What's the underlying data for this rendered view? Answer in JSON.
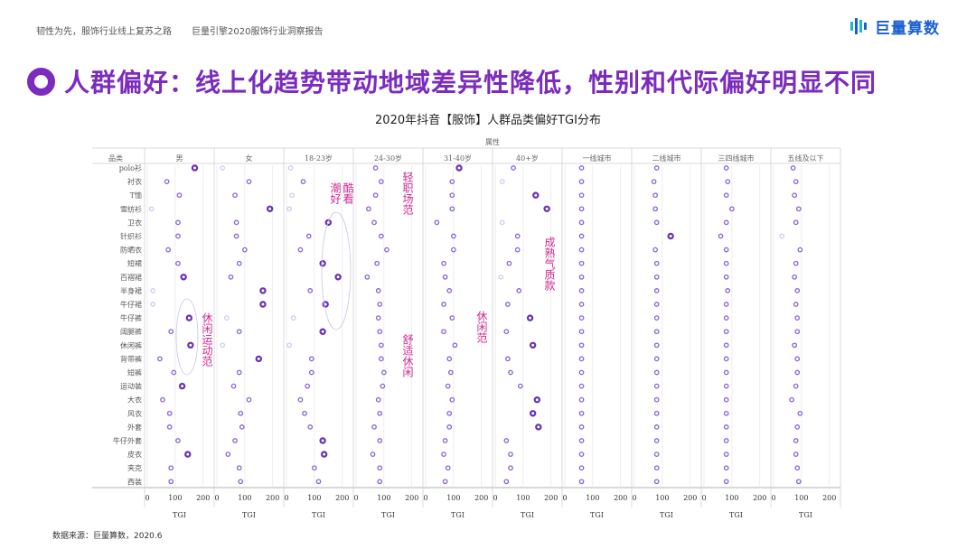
{
  "header": {
    "left": "韧性为先，服饰行业线上复苏之路",
    "right": "巨量引擎2020服饰行业洞察报告",
    "logo_text": "巨量算数"
  },
  "slide": {
    "heading": "人群偏好：线上化趋势带动地域差异性降低，性别和代际偏好明显不同"
  },
  "source": "数据来源：巨量算数，2020.6",
  "annotations": [
    {
      "text": "潮好",
      "name": "annotation-chaohao"
    },
    {
      "text": "酷看",
      "name": "annotation-kukan"
    },
    {
      "text": "轻职场范",
      "name": "annotation-light-workplace"
    },
    {
      "text": "成熟气质款",
      "name": "annotation-mature"
    },
    {
      "text": "休闲运动范",
      "name": "annotation-casual-sport"
    },
    {
      "text": "舒适休闲",
      "name": "annotation-comfort-casual"
    },
    {
      "text": "休闲范",
      "name": "annotation-casual"
    }
  ],
  "colors": {
    "accent": "#7b2bbd",
    "dot_strong": "#6a2fb8",
    "dot_light": "#c9b8ef",
    "annotation": "#d0268f"
  },
  "chart_data": {
    "type": "scatter",
    "title": "2020年抖音【服饰】人群品类偏好TGI分布",
    "group_label": "属性",
    "row_header": "品类",
    "xlabel": "TGI",
    "xlim": [
      0,
      230
    ],
    "xticks": [
      0,
      100,
      200
    ],
    "categories": [
      "polo衫",
      "衬衣",
      "T恤",
      "雪纺衫",
      "卫衣",
      "针织衫",
      "防晒衣",
      "短裙",
      "百褶裙",
      "半身裙",
      "牛仔裙",
      "牛仔裤",
      "阔腿裤",
      "休闲裤",
      "背带裤",
      "短裤",
      "运动装",
      "大衣",
      "风衣",
      "外套",
      "牛仔外套",
      "皮衣",
      "夹克",
      "西装"
    ],
    "series": [
      {
        "name": "男",
        "values": [
          170,
          70,
          115,
          15,
          110,
          110,
          75,
          110,
          130,
          20,
          20,
          150,
          85,
          155,
          45,
          95,
          125,
          55,
          80,
          80,
          110,
          145,
          85,
          85
        ]
      },
      {
        "name": "女",
        "values": [
          20,
          115,
          65,
          190,
          70,
          70,
          100,
          80,
          50,
          165,
          165,
          35,
          80,
          20,
          150,
          80,
          60,
          115,
          85,
          90,
          65,
          40,
          80,
          85
        ]
      },
      {
        "name": "18-23岁",
        "values": [
          15,
          60,
          20,
          10,
          150,
          80,
          50,
          130,
          185,
          85,
          140,
          25,
          130,
          10,
          90,
          90,
          75,
          50,
          65,
          85,
          130,
          135,
          100,
          115
        ]
      },
      {
        "name": "24-30岁",
        "values": [
          70,
          90,
          70,
          45,
          65,
          90,
          110,
          75,
          40,
          80,
          85,
          80,
          85,
          90,
          90,
          100,
          95,
          80,
          85,
          65,
          85,
          60,
          85,
          85
        ]
      },
      {
        "name": "31-40岁",
        "values": [
          120,
          95,
          95,
          95,
          40,
          100,
          100,
          65,
          70,
          85,
          65,
          95,
          65,
          105,
          85,
          90,
          80,
          95,
          85,
          85,
          70,
          65,
          80,
          70
        ]
      },
      {
        "name": "40+岁",
        "values": [
          65,
          25,
          145,
          185,
          25,
          80,
          80,
          50,
          20,
          85,
          45,
          125,
          40,
          135,
          45,
          55,
          90,
          150,
          135,
          155,
          40,
          55,
          55,
          40
        ]
      },
      {
        "name": "一线城市",
        "values": [
          60,
          60,
          60,
          60,
          60,
          60,
          60,
          60,
          60,
          60,
          60,
          60,
          60,
          60,
          60,
          60,
          60,
          60,
          60,
          60,
          60,
          60,
          60,
          60
        ]
      },
      {
        "name": "二线城市",
        "values": [
          80,
          70,
          75,
          75,
          80,
          130,
          75,
          80,
          80,
          80,
          80,
          80,
          80,
          80,
          80,
          80,
          80,
          80,
          80,
          80,
          80,
          80,
          80,
          80
        ]
      },
      {
        "name": "三四线城市",
        "values": [
          80,
          85,
          80,
          100,
          80,
          60,
          80,
          80,
          80,
          85,
          80,
          80,
          80,
          80,
          80,
          80,
          80,
          80,
          80,
          80,
          80,
          80,
          80,
          80
        ]
      },
      {
        "name": "五线及以下",
        "values": [
          70,
          80,
          75,
          90,
          80,
          30,
          95,
          80,
          75,
          85,
          80,
          85,
          85,
          75,
          85,
          85,
          80,
          65,
          95,
          85,
          80,
          80,
          85,
          90
        ]
      }
    ]
  }
}
